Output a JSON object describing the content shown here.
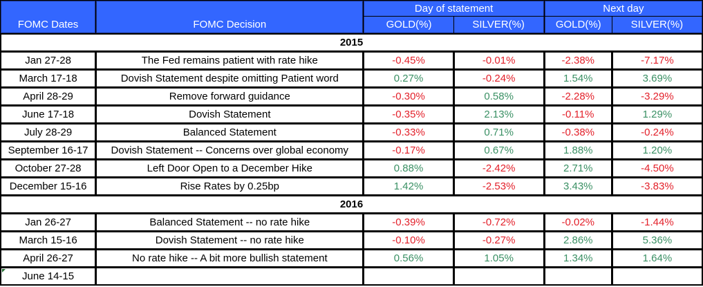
{
  "header": {
    "dates_label": "FOMC Dates",
    "decision_label": "FOMC Decision",
    "day_of_statement_label": "Day of statement",
    "next_day_label": "Next day",
    "gold_label": "GOLD(%)",
    "silver_label": "SILVER(%)"
  },
  "years": [
    {
      "year": "2015",
      "rows": [
        {
          "date": "Jan 27-28",
          "decision": "The Fed remains patient with rate hike",
          "day_gold": "-0.45%",
          "day_silver": "-0.01%",
          "next_gold": "-2.38%",
          "next_silver": "-7.17%"
        },
        {
          "date": "March 17-18",
          "decision": "Dovish Statement  despite omitting Patient word",
          "day_gold": "0.27%",
          "day_silver": "-0.24%",
          "next_gold": "1.54%",
          "next_silver": "3.69%"
        },
        {
          "date": "April 28-29",
          "decision": "Remove forward guidance",
          "day_gold": "-0.30%",
          "day_silver": "0.58%",
          "next_gold": "-2.28%",
          "next_silver": "-3.29%"
        },
        {
          "date": "June 17-18",
          "decision": "Dovish Statement",
          "day_gold": "-0.35%",
          "day_silver": "2.13%",
          "next_gold": "-0.11%",
          "next_silver": "1.29%"
        },
        {
          "date": "July 28-29",
          "decision": "Balanced  Statement",
          "day_gold": "-0.33%",
          "day_silver": "0.71%",
          "next_gold": "-0.38%",
          "next_silver": "-0.24%"
        },
        {
          "date": "September  16-17",
          "decision": "Dovish Statement  -- Concerns over global economy",
          "day_gold": "-0.17%",
          "day_silver": "0.67%",
          "next_gold": "1.88%",
          "next_silver": "1.20%"
        },
        {
          "date": "October 27-28",
          "decision": "Left Door Open to a December Hike",
          "day_gold": "0.88%",
          "day_silver": "-2.42%",
          "next_gold": "2.71%",
          "next_silver": "-4.50%"
        },
        {
          "date": "December 15-16",
          "decision": "Rise Rates by 0.25bp",
          "day_gold": "1.42%",
          "day_silver": "-2.53%",
          "next_gold": "3.43%",
          "next_silver": "-3.83%"
        }
      ]
    },
    {
      "year": "2016",
      "rows": [
        {
          "date": "Jan 26-27",
          "decision": "Balanced  Statement  -- no rate hike",
          "day_gold": "-0.39%",
          "day_silver": "-0.72%",
          "next_gold": "-0.02%",
          "next_silver": "-1.44%"
        },
        {
          "date": "March 15-16",
          "decision": "Dovish Statement  -- no rate hike",
          "day_gold": "-0.10%",
          "day_silver": "-0.27%",
          "next_gold": "2.86%",
          "next_silver": "5.36%"
        },
        {
          "date": "April 26-27",
          "decision": "No rate hike -- A bit more bullish statement",
          "day_gold": "0.56%",
          "day_silver": "1.05%",
          "next_gold": "1.34%",
          "next_silver": "1.64%"
        },
        {
          "date": "June 14-15",
          "decision": "",
          "day_gold": "",
          "day_silver": "",
          "next_gold": "",
          "next_silver": ""
        }
      ]
    }
  ],
  "colors": {
    "header_bg": "#3366ff",
    "positive": "#3a9064",
    "negative": "#e3202a"
  }
}
